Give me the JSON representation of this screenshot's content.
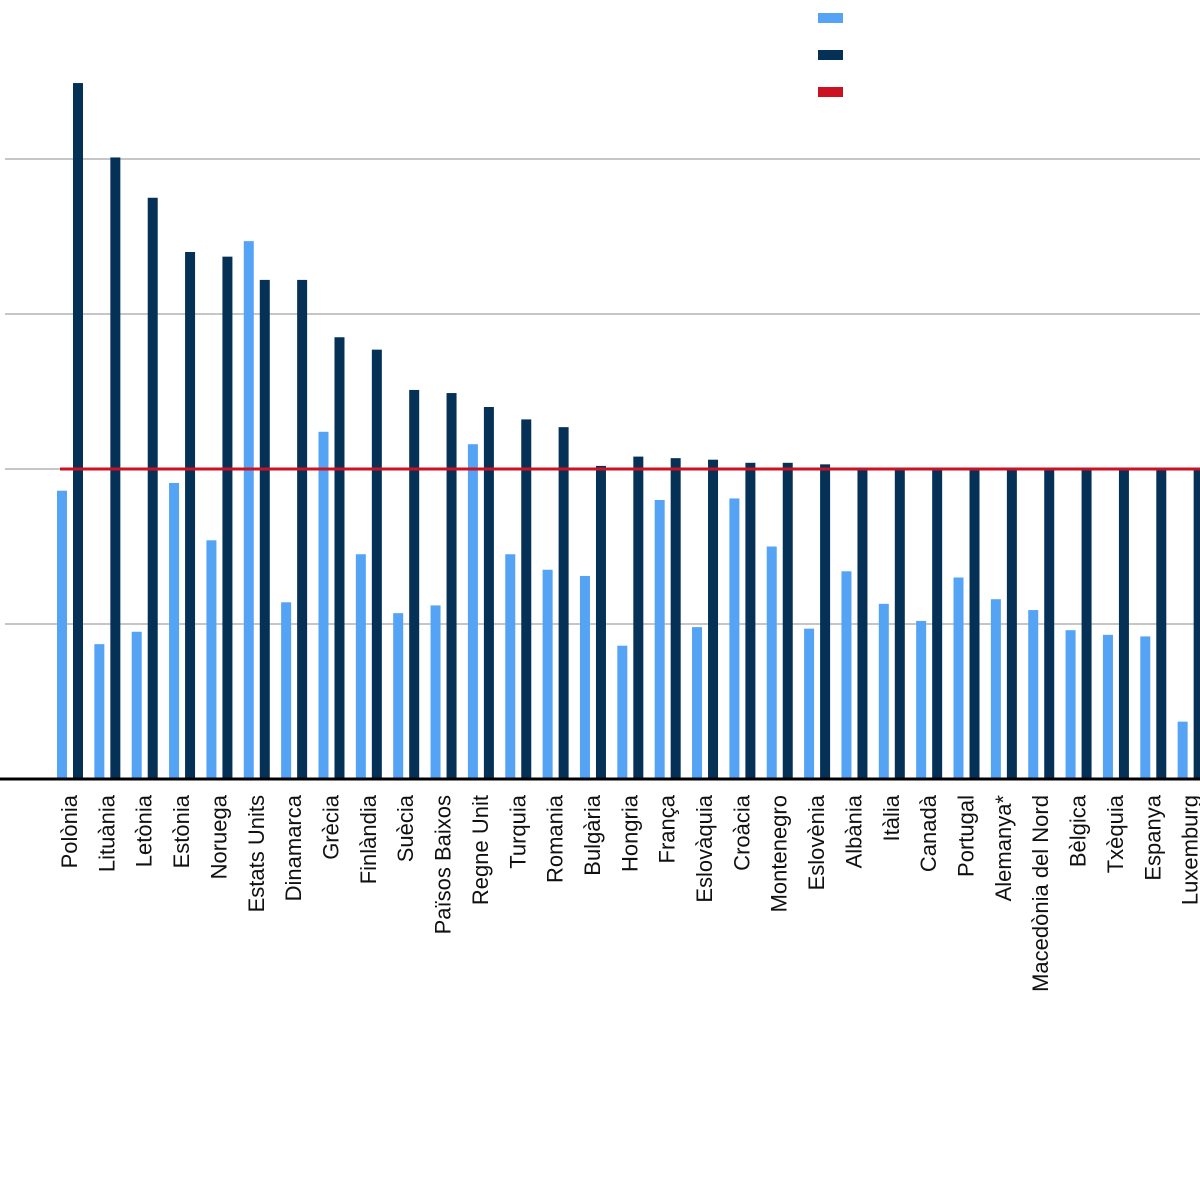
{
  "chart_data": {
    "type": "bar",
    "title": "",
    "xlabel": "",
    "ylabel": "",
    "ylim": [
      0,
      4.5
    ],
    "gridlines": [
      1,
      2,
      3,
      4
    ],
    "grid": true,
    "legend_position": "top-right",
    "reference_line": {
      "value": 2.0,
      "color": "#cc1122"
    },
    "colors": {
      "series_a": "#55a3f5",
      "series_b": "#063157",
      "grid": "#b3b3b3",
      "axis": "#000000"
    },
    "categories": [
      "Polònia",
      "Lituània",
      "Letònia",
      "Estònia",
      "Noruega",
      "Estats Units",
      "Dinamarca",
      "Grècia",
      "Finlàndia",
      "Suècia",
      "Països Baixos",
      "Regne Unit",
      "Turquia",
      "Romania",
      "Bulgària",
      "Hongria",
      "França",
      "Eslovàquia",
      "Croàcia",
      "Montenegro",
      "Eslovènia",
      "Albània",
      "Itàlia",
      "Canadà",
      "Portugal",
      "Alemanya*",
      "Macedònia del Nord",
      "Bèlgica",
      "Txèquia",
      "Espanya",
      "Luxemburg"
    ],
    "series": [
      {
        "values": [
          1.86,
          0.87,
          0.95,
          1.91,
          1.54,
          3.47,
          1.14,
          2.24,
          1.45,
          1.07,
          1.12,
          2.16,
          1.45,
          1.35,
          1.31,
          0.86,
          1.8,
          0.98,
          1.81,
          1.5,
          0.97,
          1.34,
          1.13,
          1.02,
          1.3,
          1.16,
          1.09,
          0.96,
          0.93,
          0.92,
          0.37
        ]
      },
      {
        "values": [
          4.49,
          4.01,
          3.75,
          3.4,
          3.37,
          3.22,
          3.22,
          2.85,
          2.77,
          2.51,
          2.49,
          2.4,
          2.32,
          2.27,
          2.02,
          2.08,
          2.07,
          2.06,
          2.04,
          2.04,
          2.03,
          2.0,
          2.0,
          2.0,
          2.0,
          2.0,
          2.0,
          2.0,
          2.0,
          2.0,
          2.0
        ]
      }
    ]
  }
}
